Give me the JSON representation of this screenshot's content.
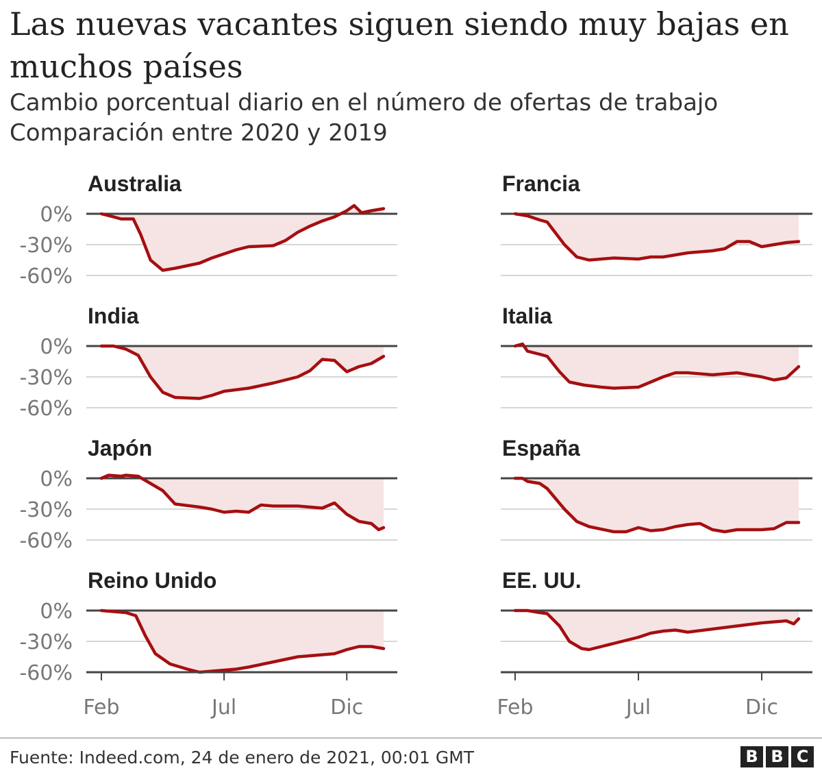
{
  "header": {
    "title": "Las nuevas vacantes siguen siendo muy bajas en muchos países",
    "subtitle_line1": "Cambio porcentual diario en el número de ofertas de trabajo",
    "subtitle_line2": "Comparación entre 2020 y 2019"
  },
  "footer": {
    "source": "Fuente: Indeed.com, 24 de enero de 2021, 00:01 GMT",
    "logo_letters": [
      "B",
      "B",
      "C"
    ]
  },
  "colors": {
    "line": "#a50f11",
    "area": "#f6e3e3",
    "zero_line": "#444444",
    "grid": "#d6d6d6",
    "axis_text": "#777777"
  },
  "chart_data": {
    "type": "area",
    "layout": "small-multiples",
    "ylim": [
      -60,
      5
    ],
    "yticks": [
      0,
      -30,
      -60
    ],
    "ytick_labels": [
      "0%",
      "-30%",
      "-60%"
    ],
    "xticks": [
      0,
      5,
      10
    ],
    "xtick_labels": [
      "Feb",
      "Jul",
      "Dic"
    ],
    "xlim": [
      0,
      11.5
    ],
    "x_unit": "months since February 2020",
    "series": [
      {
        "name": "Australia",
        "x": [
          0,
          0.5,
          0.8,
          1.3,
          1.6,
          2.0,
          2.5,
          3.0,
          4.0,
          4.5,
          5.0,
          5.5,
          6.0,
          7.0,
          7.5,
          8.0,
          8.5,
          9.0,
          9.5,
          10.0,
          10.3,
          10.6,
          11.0,
          11.5
        ],
        "y": [
          0,
          -3,
          -5,
          -5,
          -20,
          -45,
          -55,
          -53,
          -48,
          -43,
          -39,
          -35,
          -32,
          -31,
          -26,
          -18,
          -12,
          -7,
          -3,
          3,
          8,
          1,
          3,
          5
        ]
      },
      {
        "name": "Francia",
        "x": [
          0,
          0.5,
          1.0,
          1.3,
          2.0,
          2.5,
          3.0,
          4.0,
          5.0,
          5.5,
          6.0,
          7.0,
          8.0,
          8.5,
          9.0,
          9.5,
          10.0,
          10.5,
          11.0,
          11.5
        ],
        "y": [
          0,
          -2,
          -6,
          -8,
          -30,
          -42,
          -45,
          -43,
          -44,
          -42,
          -42,
          -38,
          -36,
          -34,
          -27,
          -27,
          -32,
          -30,
          -28,
          -27
        ]
      },
      {
        "name": "India",
        "x": [
          0,
          0.5,
          1.0,
          1.5,
          2.0,
          2.5,
          3.0,
          4.0,
          4.5,
          5.0,
          6.0,
          7.0,
          8.0,
          8.5,
          9.0,
          9.5,
          10.0,
          10.5,
          11.0,
          11.5
        ],
        "y": [
          0,
          0,
          -3,
          -9,
          -30,
          -45,
          -50,
          -51,
          -48,
          -44,
          -41,
          -36,
          -30,
          -24,
          -13,
          -14,
          -25,
          -20,
          -17,
          -10
        ]
      },
      {
        "name": "Italia",
        "x": [
          0,
          0.3,
          0.5,
          1.0,
          1.3,
          1.8,
          2.2,
          2.8,
          3.5,
          4.0,
          5.0,
          5.5,
          6.0,
          6.5,
          7.0,
          8.0,
          9.0,
          10.0,
          10.5,
          11.0,
          11.5
        ],
        "y": [
          0,
          2,
          -5,
          -8,
          -10,
          -25,
          -35,
          -38,
          -40,
          -41,
          -40,
          -35,
          -30,
          -26,
          -26,
          -28,
          -26,
          -30,
          -33,
          -31,
          -20
        ]
      },
      {
        "name": "Japón",
        "x": [
          0,
          0.3,
          0.8,
          1.0,
          1.5,
          2.0,
          2.5,
          3.0,
          4.0,
          4.5,
          5.0,
          5.5,
          6.0,
          6.5,
          7.0,
          8.0,
          9.0,
          9.5,
          10.0,
          10.5,
          11.0,
          11.3,
          11.5
        ],
        "y": [
          0,
          3,
          2,
          3,
          2,
          -5,
          -12,
          -25,
          -28,
          -30,
          -33,
          -32,
          -33,
          -26,
          -27,
          -27,
          -29,
          -24,
          -35,
          -42,
          -44,
          -50,
          -48
        ]
      },
      {
        "name": "España",
        "x": [
          0,
          0.3,
          0.5,
          1.0,
          1.3,
          2.0,
          2.5,
          3.0,
          4.0,
          4.5,
          5.0,
          5.5,
          6.0,
          6.5,
          7.0,
          7.5,
          8.0,
          8.5,
          9.0,
          10.0,
          10.5,
          11.0,
          11.5
        ],
        "y": [
          0,
          0,
          -3,
          -5,
          -10,
          -30,
          -42,
          -47,
          -52,
          -52,
          -48,
          -51,
          -50,
          -47,
          -45,
          -44,
          -50,
          -52,
          -50,
          -50,
          -49,
          -43,
          -43
        ]
      },
      {
        "name": "Reino Unido",
        "x": [
          0,
          0.5,
          1.0,
          1.4,
          1.8,
          2.2,
          2.8,
          3.5,
          4.0,
          4.5,
          5.0,
          5.5,
          6.0,
          7.0,
          8.0,
          9.0,
          9.5,
          10.0,
          10.5,
          11.0,
          11.5
        ],
        "y": [
          0,
          -1,
          -2,
          -5,
          -25,
          -42,
          -52,
          -57,
          -60,
          -59,
          -58,
          -57,
          -55,
          -50,
          -45,
          -43,
          -42,
          -38,
          -35,
          -35,
          -37
        ]
      },
      {
        "name": "EE. UU.",
        "x": [
          0,
          0.5,
          1.0,
          1.3,
          1.8,
          2.2,
          2.7,
          3.0,
          3.5,
          4.0,
          5.0,
          5.5,
          6.0,
          6.5,
          7.0,
          8.0,
          9.0,
          10.0,
          10.5,
          11.0,
          11.3,
          11.5
        ],
        "y": [
          0,
          0,
          -2,
          -3,
          -15,
          -30,
          -37,
          -38,
          -35,
          -32,
          -26,
          -22,
          -20,
          -19,
          -21,
          -18,
          -15,
          -12,
          -11,
          -10,
          -13,
          -8
        ]
      }
    ]
  }
}
